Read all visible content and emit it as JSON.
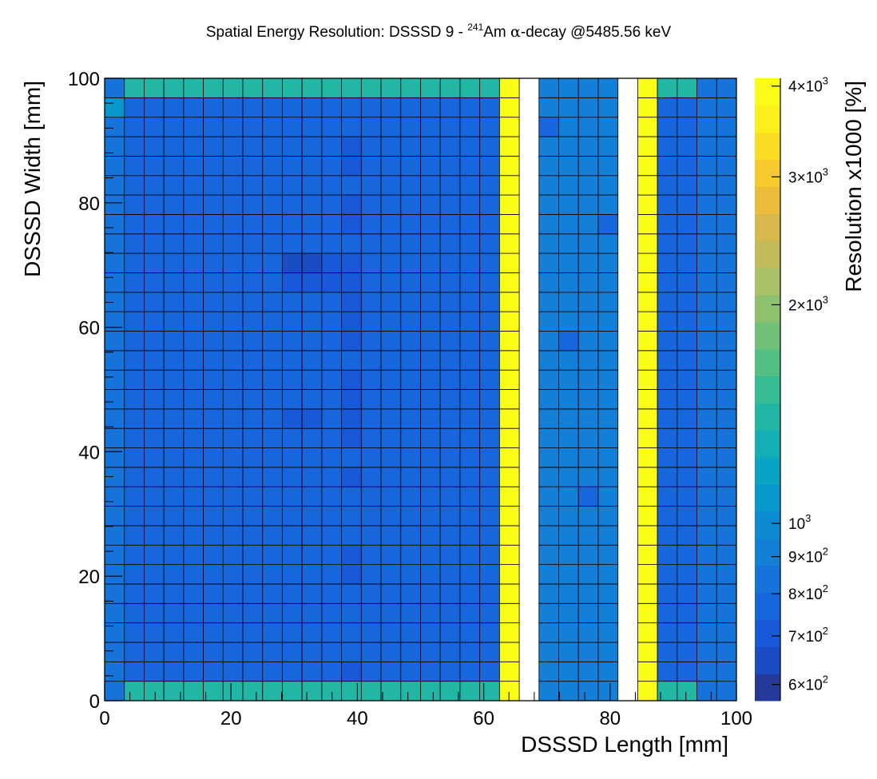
{
  "chart_data": {
    "type": "heatmap",
    "title_parts": {
      "prefix": "Spatial Energy Resolution: DSSSD  9 - ",
      "isotope_mass": "241",
      "isotope_symbol": "Am ",
      "alpha": "α",
      "suffix": "-decay @5485.56 keV"
    },
    "xlabel": "DSSSD Length [mm]",
    "ylabel": "DSSSD Width [mm]",
    "zlabel": "Resolution x1000 [%]",
    "xlim": [
      0,
      100
    ],
    "ylim": [
      0,
      100
    ],
    "x_ticks": [
      "0",
      "20",
      "40",
      "60",
      "80",
      "100"
    ],
    "y_ticks": [
      "0",
      "20",
      "40",
      "60",
      "80",
      "100"
    ],
    "zlim": [
      570,
      4100
    ],
    "z_scale": "log",
    "colorbar_labels": [
      {
        "value": 4000,
        "mantissa": "4",
        "exp": "3"
      },
      {
        "value": 3000,
        "mantissa": "3",
        "exp": "3"
      },
      {
        "value": 2000,
        "mantissa": "2",
        "exp": "3"
      },
      {
        "value": 1000,
        "mantissa": "",
        "exp": "3"
      },
      {
        "value": 900,
        "mantissa": "9",
        "exp": "2"
      },
      {
        "value": 800,
        "mantissa": "8",
        "exp": "2"
      },
      {
        "value": 700,
        "mantissa": "7",
        "exp": "2"
      },
      {
        "value": 600,
        "mantissa": "6",
        "exp": "2"
      }
    ],
    "palette": [
      "#24399a",
      "#1a4cc4",
      "#1859d9",
      "#1766dd",
      "#1573da",
      "#137fd6",
      "#0d8bd2",
      "#0897cb",
      "#09a3c4",
      "#14aeb6",
      "#22b6a5",
      "#37bb94",
      "#53bf83",
      "#70c177",
      "#8ec16d",
      "#aac066",
      "#c2bb5c",
      "#d8b74b",
      "#ebbd3a",
      "#f7c92d",
      "#fbdc24",
      "#fdef1c",
      "#fbfc18"
    ],
    "n_bins_x": 32,
    "n_bins_y": 32,
    "bin_width": 3.125,
    "empty_columns": [
      21,
      26
    ],
    "base_value": 750,
    "column_values": [
      {
        "columns": [
          0,
          30,
          31
        ],
        "value": 850
      },
      {
        "columns": [
          20,
          27
        ],
        "value": 4000
      },
      {
        "columns": [
          22,
          23,
          24,
          25
        ],
        "value": 880
      }
    ],
    "row_values": [
      {
        "rows": [
          0,
          31
        ],
        "value": 1350
      }
    ],
    "cells": [
      {
        "col": 0,
        "row": 30,
        "value": 1050
      },
      {
        "col": 12,
        "row": 1,
        "value": 700
      },
      {
        "col": 12,
        "row": 6,
        "value": 700
      },
      {
        "col": 12,
        "row": 7,
        "value": 700
      },
      {
        "col": 12,
        "row": 11,
        "value": 700
      },
      {
        "col": 12,
        "row": 13,
        "value": 700
      },
      {
        "col": 12,
        "row": 14,
        "value": 700
      },
      {
        "col": 12,
        "row": 15,
        "value": 700
      },
      {
        "col": 12,
        "row": 16,
        "value": 700
      },
      {
        "col": 12,
        "row": 18,
        "value": 700
      },
      {
        "col": 12,
        "row": 19,
        "value": 700
      },
      {
        "col": 12,
        "row": 20,
        "value": 700
      },
      {
        "col": 12,
        "row": 21,
        "value": 700
      },
      {
        "col": 12,
        "row": 22,
        "value": 700
      },
      {
        "col": 12,
        "row": 24,
        "value": 700
      },
      {
        "col": 12,
        "row": 25,
        "value": 700
      },
      {
        "col": 12,
        "row": 27,
        "value": 700
      },
      {
        "col": 12,
        "row": 28,
        "value": 700
      },
      {
        "col": 9,
        "row": 22,
        "value": 650
      },
      {
        "col": 10,
        "row": 22,
        "value": 650
      },
      {
        "col": 11,
        "row": 22,
        "value": 680
      },
      {
        "col": 9,
        "row": 21,
        "value": 680
      },
      {
        "col": 10,
        "row": 21,
        "value": 680
      },
      {
        "col": 11,
        "row": 21,
        "value": 700
      },
      {
        "col": 9,
        "row": 14,
        "value": 680
      },
      {
        "col": 10,
        "row": 14,
        "value": 700
      },
      {
        "col": 16,
        "row": 26,
        "value": 800
      },
      {
        "col": 17,
        "row": 24,
        "value": 800
      },
      {
        "col": 18,
        "row": 20,
        "value": 800
      },
      {
        "col": 19,
        "row": 23,
        "value": 800
      },
      {
        "col": 16,
        "row": 10,
        "value": 800
      },
      {
        "col": 17,
        "row": 12,
        "value": 800
      },
      {
        "col": 18,
        "row": 8,
        "value": 800
      },
      {
        "col": 19,
        "row": 5,
        "value": 800
      },
      {
        "col": 22,
        "row": 29,
        "value": 790
      },
      {
        "col": 23,
        "row": 18,
        "value": 790
      },
      {
        "col": 24,
        "row": 10,
        "value": 790
      },
      {
        "col": 25,
        "row": 24,
        "value": 790
      },
      {
        "col": 29,
        "row": 30,
        "value": 800
      }
    ]
  }
}
